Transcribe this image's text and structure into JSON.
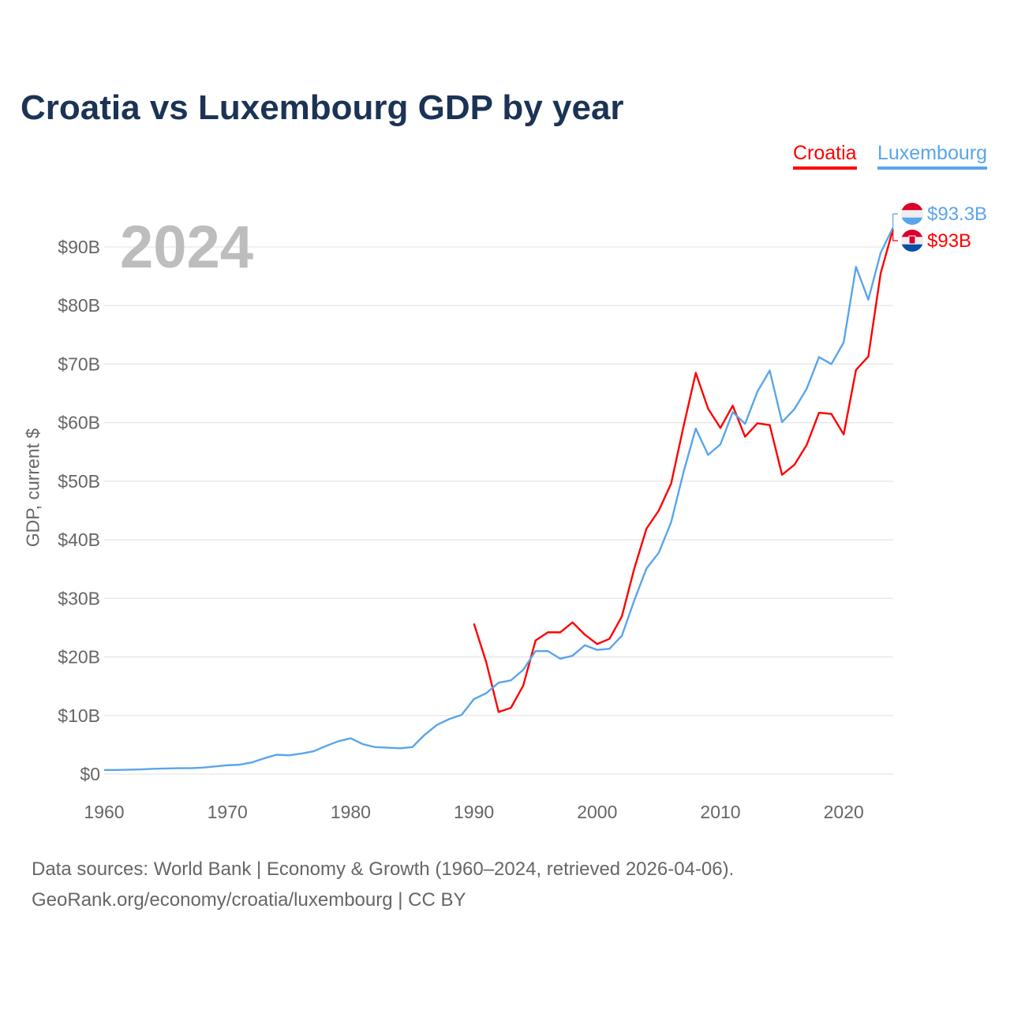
{
  "title": "Croatia vs Luxembourg GDP by year",
  "year_label": "2024",
  "footer": {
    "line1": "Data sources: World Bank | Economy & Growth (1960–2024, retrieved 2026-04-06).",
    "line2": "GeoRank.org/economy/croatia/luxembourg | CC BY"
  },
  "chart_data": {
    "type": "line",
    "title": "Croatia vs Luxembourg GDP by year",
    "xlabel": "",
    "ylabel": "GDP, current $",
    "xlim": [
      1960,
      2024
    ],
    "ylim": [
      0,
      90
    ],
    "grid": true,
    "legend_position": "top-right",
    "x_ticks": [
      "1960",
      "1970",
      "1980",
      "1990",
      "2000",
      "2010",
      "2020"
    ],
    "y_ticks": [
      "$0",
      "$10B",
      "$20B",
      "$30B",
      "$40B",
      "$50B",
      "$60B",
      "$70B",
      "$80B",
      "$90B"
    ],
    "series": [
      {
        "name": "Croatia",
        "color": "#ff0000",
        "end_label": "$93B",
        "start_year": 1990,
        "values": [
          25.7,
          19.1,
          10.6,
          11.3,
          15.1,
          22.8,
          24.2,
          24.2,
          25.9,
          23.8,
          22.2,
          23.1,
          26.9,
          35.0,
          41.9,
          45.0,
          49.6,
          59.3,
          68.5,
          62.4,
          59.1,
          62.9,
          57.6,
          59.9,
          59.6,
          51.1,
          52.8,
          56.2,
          61.7,
          61.5,
          58.0,
          69.0,
          71.3,
          85.5,
          93.0
        ]
      },
      {
        "name": "Luxembourg",
        "color": "#5aa5ea",
        "end_label": "$93.3B",
        "start_year": 1960,
        "values": [
          0.7,
          0.7,
          0.75,
          0.8,
          0.9,
          0.95,
          1.0,
          1.0,
          1.1,
          1.3,
          1.5,
          1.6,
          2.0,
          2.7,
          3.3,
          3.2,
          3.5,
          3.9,
          4.8,
          5.6,
          6.1,
          5.1,
          4.6,
          4.5,
          4.4,
          4.6,
          6.7,
          8.4,
          9.4,
          10.1,
          12.8,
          13.8,
          15.6,
          16.0,
          17.8,
          21.0,
          21.0,
          19.7,
          20.2,
          22.0,
          21.2,
          21.4,
          23.6,
          29.6,
          35.1,
          37.8,
          43.0,
          51.5,
          59.0,
          54.5,
          56.3,
          61.8,
          59.8,
          65.3,
          68.9,
          60.1,
          62.3,
          65.8,
          71.2,
          70.0,
          73.7,
          86.6,
          81.0,
          89.0,
          93.3
        ]
      }
    ]
  }
}
